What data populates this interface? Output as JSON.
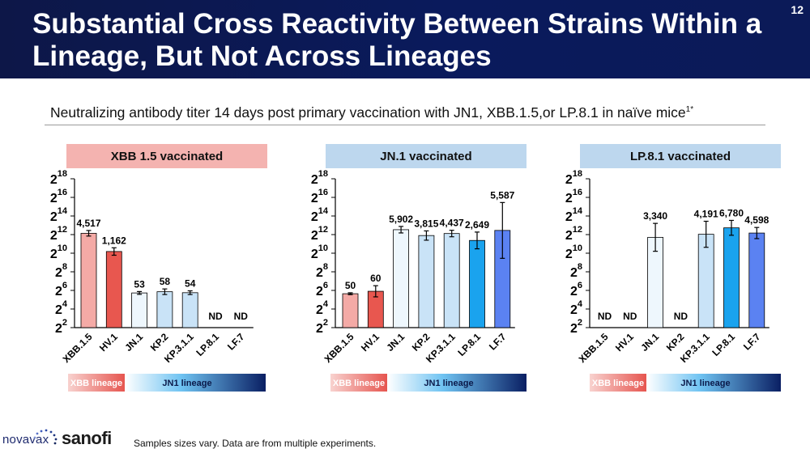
{
  "page": {
    "title": "Substantial Cross Reactivity Between Strains Within a Lineage, But Not Across Lineages",
    "page_number": "12",
    "subtitle": "Neutralizing antibody titer 14 days post primary vaccination with JN1, XBB.1.5,or LP.8.1 in naïve mice",
    "subtitle_sup": "1*",
    "footnote": "Samples sizes vary. Data are from multiple experiments.",
    "logo_left": "novavax",
    "logo_right": "sanofi"
  },
  "colors": {
    "title_bg": "#0b1a58",
    "xbb_header": "#f4b3b0",
    "jn_header": "#bdd7ee",
    "xbb_lineage_start": "#f8d2cf",
    "xbb_lineage_end": "#e6554f",
    "jn1_lineage_start": "#ffffff",
    "jn1_lineage_end": "#0a1f63"
  },
  "chart_data": [
    {
      "type": "bar",
      "header": "XBB 1.5 vaccinated",
      "header_color": "#f4b3b0",
      "categories": [
        "XBB.1.5",
        "HV.1",
        "JN.1",
        "KP.2",
        "KP.3.1.1",
        "LP.8.1",
        "LF.7"
      ],
      "values": [
        4517,
        1162,
        53,
        58,
        54,
        null,
        null
      ],
      "labels": [
        "4,517",
        "1,162",
        "53",
        "58",
        "54",
        "ND",
        "ND"
      ],
      "error_log2": [
        0.3,
        0.4,
        0.15,
        0.3,
        0.2,
        null,
        null
      ],
      "bar_colors": [
        "#f4aaa6",
        "#e8574f",
        "#eef7fd",
        "#c9e3f7",
        "#c9e3f7",
        "#1aa3ee",
        "#5b82f2"
      ],
      "y_scale": "log2",
      "ylim_exp": [
        2,
        18
      ],
      "yticks": [
        "2",
        "2",
        "2",
        "2",
        "2",
        "2",
        "2",
        "2",
        "2"
      ],
      "ytick_exps": [
        "2",
        "4",
        "6",
        "8",
        "10",
        "12",
        "14",
        "16",
        "18"
      ],
      "lineage_bands": [
        {
          "label": "XBB lineage",
          "span": [
            0,
            1
          ]
        },
        {
          "label": "JN1 lineage",
          "span": [
            2,
            6
          ]
        }
      ]
    },
    {
      "type": "bar",
      "header": "JN.1 vaccinated",
      "header_color": "#bdd7ee",
      "categories": [
        "XBB.1.5",
        "HV.1",
        "JN.1",
        "KP.2",
        "KP.3.1.1",
        "LP.8.1",
        "LF.7"
      ],
      "values": [
        50,
        60,
        5902,
        3815,
        4437,
        2649,
        5587
      ],
      "labels": [
        "50",
        "60",
        "5,902",
        "3,815",
        "4,437",
        "2,649",
        "5,587"
      ],
      "error_log2": [
        0.1,
        0.6,
        0.35,
        0.5,
        0.35,
        0.9,
        3.0
      ],
      "bar_colors": [
        "#f4aaa6",
        "#e8574f",
        "#eef7fd",
        "#c9e3f7",
        "#c9e3f7",
        "#1aa3ee",
        "#5b82f2"
      ],
      "y_scale": "log2",
      "ylim_exp": [
        2,
        18
      ],
      "yticks": [
        "2",
        "2",
        "2",
        "2",
        "2",
        "2",
        "2",
        "2",
        "2"
      ],
      "ytick_exps": [
        "2",
        "4",
        "6",
        "8",
        "10",
        "12",
        "14",
        "16",
        "18"
      ],
      "lineage_bands": [
        {
          "label": "XBB lineage",
          "span": [
            0,
            1
          ]
        },
        {
          "label": "JN1 lineage",
          "span": [
            2,
            6
          ]
        }
      ]
    },
    {
      "type": "bar",
      "header": "LP.8.1 vaccinated",
      "header_color": "#bdd7ee",
      "categories": [
        "XBB.1.5",
        "HV.1",
        "JN.1",
        "KP.2",
        "KP.3.1.1",
        "LP.8.1",
        "LF.7"
      ],
      "values": [
        null,
        null,
        3340,
        null,
        4191,
        6780,
        4598
      ],
      "labels": [
        "ND",
        "ND",
        "3,340",
        "ND",
        "4,191",
        "6,780",
        "4,598"
      ],
      "error_log2": [
        null,
        null,
        1.5,
        null,
        1.4,
        0.8,
        0.6
      ],
      "bar_colors": [
        "#f4aaa6",
        "#e8574f",
        "#eef7fd",
        "#c9e3f7",
        "#c9e3f7",
        "#1aa3ee",
        "#5b82f2"
      ],
      "y_scale": "log2",
      "ylim_exp": [
        2,
        18
      ],
      "yticks": [
        "2",
        "2",
        "2",
        "2",
        "2",
        "2",
        "2",
        "2",
        "2"
      ],
      "ytick_exps": [
        "2",
        "4",
        "6",
        "8",
        "10",
        "12",
        "14",
        "16",
        "18"
      ],
      "lineage_bands": [
        {
          "label": "XBB lineage",
          "span": [
            0,
            1
          ]
        },
        {
          "label": "JN1 lineage",
          "span": [
            2,
            6
          ]
        }
      ]
    }
  ]
}
